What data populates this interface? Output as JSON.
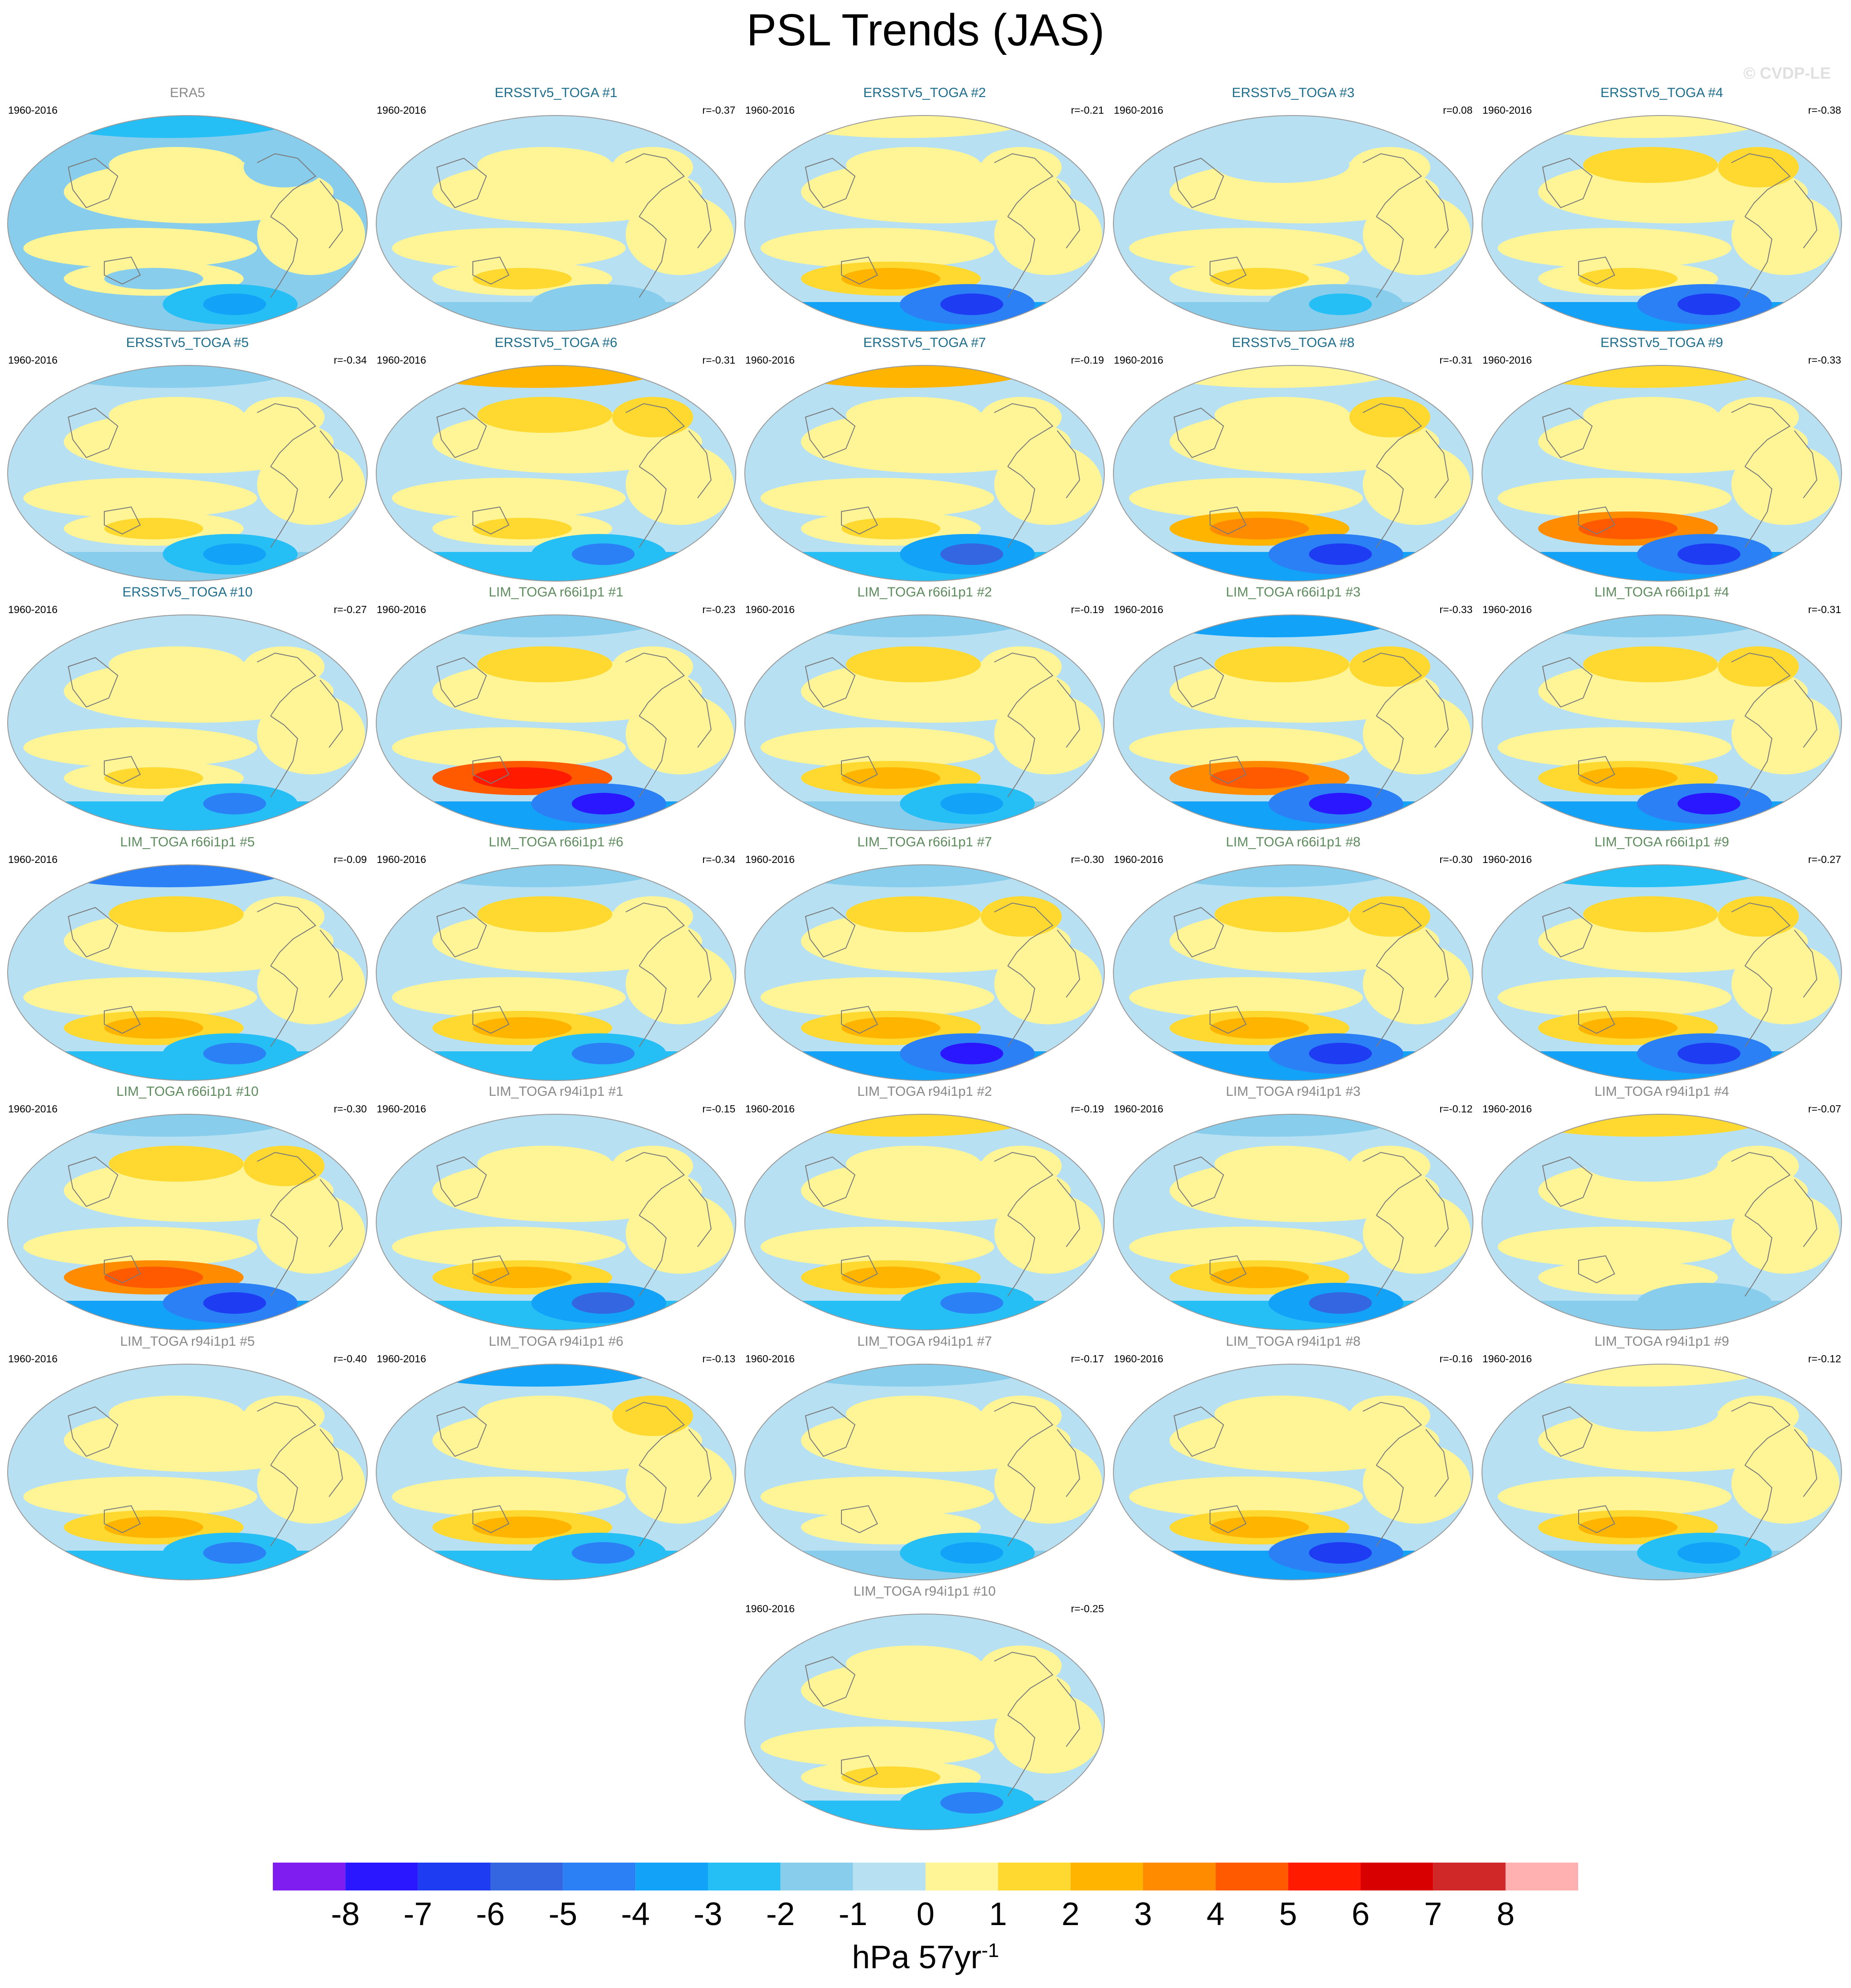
{
  "page": {
    "title": "PSL Trends (JAS)",
    "copyright": "© CVDP-LE"
  },
  "colors": {
    "ocean_fill": "#b7e0f2",
    "coast_line": "#7a7a7a",
    "scale": [
      "#7f1cf0",
      "#2a16ff",
      "#1e3cf2",
      "#3366e0",
      "#2a80f4",
      "#12a2f8",
      "#25bff5",
      "#88cdec",
      "#b7e0f2",
      "#fff597",
      "#ffd930",
      "#ffb500",
      "#ff8c00",
      "#ff5a00",
      "#ff1a00",
      "#d80000",
      "#d02828",
      "#ffb0b0"
    ]
  },
  "colorbar": {
    "labels": [
      "-8",
      "-7",
      "-6",
      "-5",
      "-4",
      "-3",
      "-2",
      "-1",
      "0",
      "1",
      "2",
      "3",
      "4",
      "5",
      "6",
      "7",
      "8"
    ],
    "units_main": "hPa 57yr",
    "units_sup": "-1"
  },
  "chart_data": {
    "type": "heatmap",
    "title": "PSL Trends (JAS)",
    "variable": "Sea level pressure trend",
    "units": "hPa 57yr-1",
    "levels": [
      -8,
      -7,
      -6,
      -5,
      -4,
      -3,
      -2,
      -1,
      0,
      1,
      2,
      3,
      4,
      5,
      6,
      7,
      8
    ],
    "projection": "global ellipse map",
    "period": "1960-2016",
    "panels": [
      {
        "title": "ERA5",
        "group": "obs",
        "period": "1960-2016",
        "r": "",
        "pattern": {
          "base": -1,
          "arctic": -2,
          "spac": -1,
          "spole": -3,
          "npac": 1,
          "natl": -1
        }
      },
      {
        "title": "ERSSTv5_TOGA #1",
        "group": "ersst",
        "period": "1960-2016",
        "r": "r=-0.37",
        "pattern": {
          "base": 0,
          "arctic": 0,
          "spac": 2,
          "spole": -1,
          "npac": 1,
          "natl": 1
        }
      },
      {
        "title": "ERSSTv5_TOGA #2",
        "group": "ersst",
        "period": "1960-2016",
        "r": "r=-0.21",
        "pattern": {
          "base": 0,
          "arctic": 1,
          "spac": 3,
          "spole": -6,
          "npac": 1,
          "natl": 1
        }
      },
      {
        "title": "ERSSTv5_TOGA #3",
        "group": "ersst",
        "period": "1960-2016",
        "r": "r=0.08",
        "pattern": {
          "base": 0,
          "arctic": 0,
          "spac": 2,
          "spole": -2,
          "npac": 0,
          "natl": 1
        }
      },
      {
        "title": "ERSSTv5_TOGA #4",
        "group": "ersst",
        "period": "1960-2016",
        "r": "r=-0.38",
        "pattern": {
          "base": 0,
          "arctic": 1,
          "spac": 2,
          "spole": -6,
          "npac": 2,
          "natl": 2
        }
      },
      {
        "title": "ERSSTv5_TOGA #5",
        "group": "ersst",
        "period": "1960-2016",
        "r": "r=-0.34",
        "pattern": {
          "base": 0,
          "arctic": -1,
          "spac": 2,
          "spole": -3,
          "npac": 1,
          "natl": 1
        }
      },
      {
        "title": "ERSSTv5_TOGA #6",
        "group": "ersst",
        "period": "1960-2016",
        "r": "r=-0.31",
        "pattern": {
          "base": 0,
          "arctic": 3,
          "spac": 2,
          "spole": -4,
          "npac": 2,
          "natl": 2
        }
      },
      {
        "title": "ERSSTv5_TOGA #7",
        "group": "ersst",
        "period": "1960-2016",
        "r": "r=-0.19",
        "pattern": {
          "base": 0,
          "arctic": 3,
          "spac": 2,
          "spole": -5,
          "npac": 1,
          "natl": 1
        }
      },
      {
        "title": "ERSSTv5_TOGA #8",
        "group": "ersst",
        "period": "1960-2016",
        "r": "r=-0.31",
        "pattern": {
          "base": 0,
          "arctic": 1,
          "spac": 4,
          "spole": -6,
          "npac": 1,
          "natl": 2
        }
      },
      {
        "title": "ERSSTv5_TOGA #9",
        "group": "ersst",
        "period": "1960-2016",
        "r": "r=-0.33",
        "pattern": {
          "base": 0,
          "arctic": 2,
          "spac": 5,
          "spole": -6,
          "npac": 1,
          "natl": 1
        }
      },
      {
        "title": "ERSSTv5_TOGA #10",
        "group": "ersst",
        "period": "1960-2016",
        "r": "r=-0.27",
        "pattern": {
          "base": 0,
          "arctic": 0,
          "spac": 2,
          "spole": -4,
          "npac": 1,
          "natl": 1
        }
      },
      {
        "title": "LIM_TOGA r66i1p1 #1",
        "group": "lim66",
        "period": "1960-2016",
        "r": "r=-0.23",
        "pattern": {
          "base": 0,
          "arctic": -1,
          "spac": 6,
          "spole": -7,
          "npac": 2,
          "natl": 1
        }
      },
      {
        "title": "LIM_TOGA r66i1p1 #2",
        "group": "lim66",
        "period": "1960-2016",
        "r": "r=-0.19",
        "pattern": {
          "base": 0,
          "arctic": -1,
          "spac": 3,
          "spole": -3,
          "npac": 2,
          "natl": 1
        }
      },
      {
        "title": "LIM_TOGA r66i1p1 #3",
        "group": "lim66",
        "period": "1960-2016",
        "r": "r=-0.33",
        "pattern": {
          "base": 0,
          "arctic": -3,
          "spac": 5,
          "spole": -7,
          "npac": 2,
          "natl": 2
        }
      },
      {
        "title": "LIM_TOGA r66i1p1 #4",
        "group": "lim66",
        "period": "1960-2016",
        "r": "r=-0.31",
        "pattern": {
          "base": 0,
          "arctic": -1,
          "spac": 3,
          "spole": -7,
          "npac": 2,
          "natl": 2
        }
      },
      {
        "title": "LIM_TOGA r66i1p1 #5",
        "group": "lim66",
        "period": "1960-2016",
        "r": "r=-0.09",
        "pattern": {
          "base": 0,
          "arctic": -4,
          "spac": 3,
          "spole": -4,
          "npac": 2,
          "natl": 1
        }
      },
      {
        "title": "LIM_TOGA r66i1p1 #6",
        "group": "lim66",
        "period": "1960-2016",
        "r": "r=-0.34",
        "pattern": {
          "base": 0,
          "arctic": -1,
          "spac": 3,
          "spole": -4,
          "npac": 2,
          "natl": 1
        }
      },
      {
        "title": "LIM_TOGA r66i1p1 #7",
        "group": "lim66",
        "period": "1960-2016",
        "r": "r=-0.30",
        "pattern": {
          "base": 0,
          "arctic": -1,
          "spac": 3,
          "spole": -7,
          "npac": 2,
          "natl": 2
        }
      },
      {
        "title": "LIM_TOGA r66i1p1 #8",
        "group": "lim66",
        "period": "1960-2016",
        "r": "r=-0.30",
        "pattern": {
          "base": 0,
          "arctic": -1,
          "spac": 3,
          "spole": -6,
          "npac": 2,
          "natl": 2
        }
      },
      {
        "title": "LIM_TOGA r66i1p1 #9",
        "group": "lim66",
        "period": "1960-2016",
        "r": "r=-0.27",
        "pattern": {
          "base": 0,
          "arctic": -2,
          "spac": 3,
          "spole": -6,
          "npac": 2,
          "natl": 2
        }
      },
      {
        "title": "LIM_TOGA r66i1p1 #10",
        "group": "lim66",
        "period": "1960-2016",
        "r": "r=-0.30",
        "pattern": {
          "base": 0,
          "arctic": -1,
          "spac": 5,
          "spole": -6,
          "npac": 2,
          "natl": 2
        }
      },
      {
        "title": "LIM_TOGA r94i1p1 #1",
        "group": "lim94",
        "period": "1960-2016",
        "r": "r=-0.15",
        "pattern": {
          "base": 0,
          "arctic": 0,
          "spac": 3,
          "spole": -5,
          "npac": 1,
          "natl": 1
        }
      },
      {
        "title": "LIM_TOGA r94i1p1 #2",
        "group": "lim94",
        "period": "1960-2016",
        "r": "r=-0.19",
        "pattern": {
          "base": 0,
          "arctic": 2,
          "spac": 3,
          "spole": -4,
          "npac": 1,
          "natl": 1
        }
      },
      {
        "title": "LIM_TOGA r94i1p1 #3",
        "group": "lim94",
        "period": "1960-2016",
        "r": "r=-0.12",
        "pattern": {
          "base": 0,
          "arctic": -1,
          "spac": 3,
          "spole": -5,
          "npac": 1,
          "natl": 1
        }
      },
      {
        "title": "LIM_TOGA r94i1p1 #4",
        "group": "lim94",
        "period": "1960-2016",
        "r": "r=-0.07",
        "pattern": {
          "base": 0,
          "arctic": 2,
          "spac": 1,
          "spole": -1,
          "npac": 0,
          "natl": 1
        }
      },
      {
        "title": "LIM_TOGA r94i1p1 #5",
        "group": "lim94",
        "period": "1960-2016",
        "r": "r=-0.40",
        "pattern": {
          "base": 0,
          "arctic": 0,
          "spac": 3,
          "spole": -4,
          "npac": 1,
          "natl": 1
        }
      },
      {
        "title": "LIM_TOGA r94i1p1 #6",
        "group": "lim94",
        "period": "1960-2016",
        "r": "r=-0.13",
        "pattern": {
          "base": 0,
          "arctic": -3,
          "spac": 3,
          "spole": -4,
          "npac": 1,
          "natl": 2
        }
      },
      {
        "title": "LIM_TOGA r94i1p1 #7",
        "group": "lim94",
        "period": "1960-2016",
        "r": "r=-0.17",
        "pattern": {
          "base": 0,
          "arctic": -1,
          "spac": 1,
          "spole": -3,
          "npac": 1,
          "natl": 1
        }
      },
      {
        "title": "LIM_TOGA r94i1p1 #8",
        "group": "lim94",
        "period": "1960-2016",
        "r": "r=-0.16",
        "pattern": {
          "base": 0,
          "arctic": 0,
          "spac": 3,
          "spole": -6,
          "npac": 1,
          "natl": 1
        }
      },
      {
        "title": "LIM_TOGA r94i1p1 #9",
        "group": "lim94",
        "period": "1960-2016",
        "r": "r=-0.12",
        "pattern": {
          "base": 0,
          "arctic": 1,
          "spac": 3,
          "spole": -3,
          "npac": 0,
          "natl": 1
        }
      },
      {
        "title": "LIM_TOGA r94i1p1 #10",
        "group": "lim94",
        "period": "1960-2016",
        "r": "r=-0.25",
        "pattern": {
          "base": 0,
          "arctic": 0,
          "spac": 2,
          "spole": -4,
          "npac": 1,
          "natl": 1
        }
      }
    ]
  }
}
